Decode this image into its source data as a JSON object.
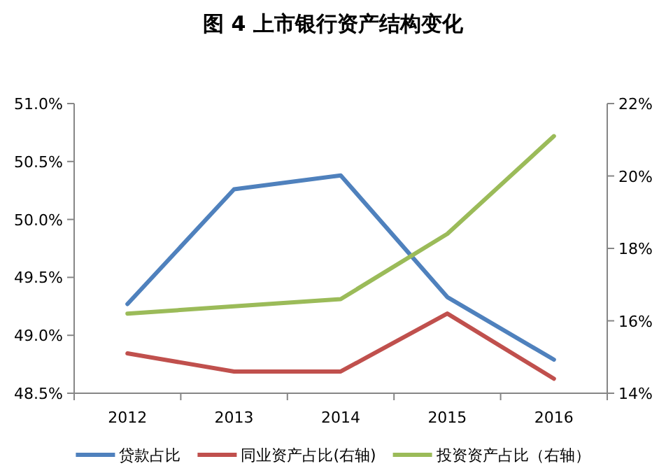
{
  "chart_data": {
    "type": "line",
    "title": "图 4 上市银行资产结构变化",
    "categories": [
      "2012",
      "2013",
      "2014",
      "2015",
      "2016"
    ],
    "series": [
      {
        "name": "贷款占比",
        "color": "#4f81bd",
        "values": [
          49.27,
          50.26,
          50.38,
          49.33,
          48.79
        ]
      },
      {
        "name": "同业资产占比(右轴)",
        "color": "#c0504d",
        "axis": "y2",
        "values": [
          15.1,
          14.6,
          14.6,
          16.2,
          14.4
        ]
      },
      {
        "name": "投资资产占比（右轴）",
        "color": "#9bbb59",
        "axis": "y2",
        "values": [
          16.2,
          16.4,
          16.6,
          18.4,
          21.1
        ]
      }
    ],
    "ylim": [
      48.5,
      51.0
    ],
    "yticks": [
      {
        "value": 48.5,
        "label": "48.5%"
      },
      {
        "value": 49,
        "label": "49.0%"
      },
      {
        "value": 49.5,
        "label": "49.5%"
      },
      {
        "value": 50,
        "label": "50.0%"
      },
      {
        "value": 50.5,
        "label": "50.5%"
      },
      {
        "value": 51,
        "label": "51.0%"
      }
    ],
    "y2lim": [
      14,
      22
    ],
    "y2ticks": [
      {
        "value": 14,
        "label": "14%"
      },
      {
        "value": 16,
        "label": "16%"
      },
      {
        "value": 18,
        "label": "18%"
      },
      {
        "value": 20,
        "label": "20%"
      },
      {
        "value": 22,
        "label": "22%"
      }
    ],
    "grid": false,
    "legend": "bottom",
    "marker": "none",
    "line_style": "solid"
  }
}
